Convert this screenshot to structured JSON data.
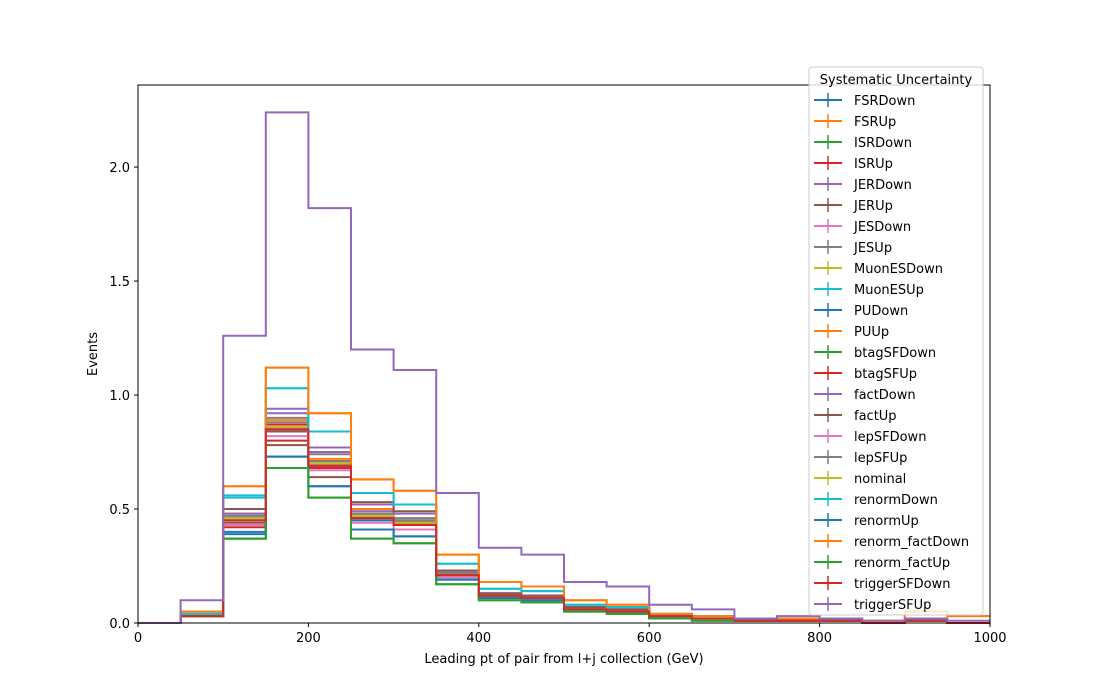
{
  "chart_data": {
    "type": "step",
    "xlabel": "Leading pt of pair from l+j collection (GeV)",
    "ylabel": "Events",
    "xlim": [
      0,
      1000
    ],
    "ylim": [
      0,
      2.36
    ],
    "x_ticks": [
      "0",
      "200",
      "400",
      "600",
      "800",
      "1000"
    ],
    "y_ticks": [
      "0.0",
      "0.5",
      "1.0",
      "1.5",
      "2.0"
    ],
    "legend_title": "Systematic Uncertainty",
    "legend_placement": "top-right",
    "bin_edges": [
      0,
      50,
      100,
      150,
      200,
      250,
      300,
      350,
      400,
      450,
      500,
      550,
      600,
      650,
      700,
      750,
      800,
      850,
      900,
      950,
      1000
    ],
    "series": [
      {
        "name": "FSRDown",
        "color": "#1f77b4",
        "values": [
          0,
          0.03,
          0.4,
          0.85,
          0.69,
          0.45,
          0.43,
          0.21,
          0.12,
          0.11,
          0.06,
          0.05,
          0.03,
          0.02,
          0.01,
          0.01,
          0.01,
          0.0,
          0.01,
          0.0
        ]
      },
      {
        "name": "FSRUp",
        "color": "#ff7f0e",
        "values": [
          0,
          0.04,
          0.48,
          0.89,
          0.72,
          0.5,
          0.45,
          0.22,
          0.13,
          0.12,
          0.07,
          0.06,
          0.03,
          0.02,
          0.01,
          0.01,
          0.01,
          0.0,
          0.01,
          0.0
        ]
      },
      {
        "name": "ISRDown",
        "color": "#2ca02c",
        "values": [
          0,
          0.03,
          0.45,
          0.86,
          0.7,
          0.46,
          0.44,
          0.21,
          0.12,
          0.11,
          0.06,
          0.05,
          0.03,
          0.02,
          0.01,
          0.01,
          0.01,
          0.0,
          0.01,
          0.0
        ]
      },
      {
        "name": "ISRUp",
        "color": "#d62728",
        "values": [
          0,
          0.03,
          0.46,
          0.87,
          0.71,
          0.47,
          0.44,
          0.21,
          0.12,
          0.11,
          0.06,
          0.05,
          0.03,
          0.02,
          0.01,
          0.01,
          0.01,
          0.0,
          0.01,
          0.0
        ]
      },
      {
        "name": "JERDown",
        "color": "#9467bd",
        "values": [
          0,
          0.03,
          0.47,
          0.92,
          0.75,
          0.49,
          0.45,
          0.22,
          0.13,
          0.12,
          0.07,
          0.06,
          0.03,
          0.02,
          0.01,
          0.01,
          0.01,
          0.0,
          0.01,
          0.0
        ]
      },
      {
        "name": "JERUp",
        "color": "#8c564b",
        "values": [
          0,
          0.03,
          0.44,
          0.84,
          0.69,
          0.46,
          0.43,
          0.21,
          0.12,
          0.11,
          0.06,
          0.05,
          0.03,
          0.02,
          0.01,
          0.01,
          0.01,
          0.0,
          0.01,
          0.0
        ]
      },
      {
        "name": "JESDown",
        "color": "#e377c2",
        "values": [
          0,
          0.03,
          0.43,
          0.82,
          0.67,
          0.44,
          0.41,
          0.2,
          0.11,
          0.1,
          0.06,
          0.05,
          0.03,
          0.02,
          0.01,
          0.01,
          0.01,
          0.0,
          0.01,
          0.0
        ]
      },
      {
        "name": "JESUp",
        "color": "#7f7f7f",
        "values": [
          0,
          0.03,
          0.47,
          0.9,
          0.74,
          0.48,
          0.46,
          0.22,
          0.13,
          0.12,
          0.07,
          0.06,
          0.03,
          0.02,
          0.01,
          0.01,
          0.01,
          0.0,
          0.01,
          0.0
        ]
      },
      {
        "name": "MuonESDown",
        "color": "#bcbd22",
        "values": [
          0,
          0.03,
          0.46,
          0.86,
          0.7,
          0.46,
          0.44,
          0.21,
          0.12,
          0.11,
          0.06,
          0.05,
          0.03,
          0.02,
          0.01,
          0.01,
          0.01,
          0.0,
          0.01,
          0.0
        ]
      },
      {
        "name": "MuonESUp",
        "color": "#17becf",
        "values": [
          0,
          0.04,
          0.56,
          1.03,
          0.84,
          0.57,
          0.52,
          0.26,
          0.15,
          0.14,
          0.08,
          0.07,
          0.04,
          0.03,
          0.01,
          0.01,
          0.01,
          0.0,
          0.01,
          0.0
        ]
      },
      {
        "name": "PUDown",
        "color": "#1f77b4",
        "values": [
          0,
          0.03,
          0.37,
          0.73,
          0.6,
          0.41,
          0.38,
          0.19,
          0.11,
          0.1,
          0.06,
          0.05,
          0.03,
          0.02,
          0.01,
          0.01,
          0.01,
          0.0,
          0.01,
          0.0
        ]
      },
      {
        "name": "PUUp",
        "color": "#ff7f0e",
        "values": [
          0,
          0.05,
          0.6,
          1.12,
          0.92,
          0.63,
          0.58,
          0.3,
          0.18,
          0.16,
          0.1,
          0.08,
          0.04,
          0.03,
          0.02,
          0.02,
          0.02,
          0.01,
          0.05,
          0.03
        ]
      },
      {
        "name": "btagSFDown",
        "color": "#2ca02c",
        "values": [
          0,
          0.03,
          0.37,
          0.68,
          0.55,
          0.37,
          0.35,
          0.17,
          0.1,
          0.09,
          0.05,
          0.04,
          0.02,
          0.01,
          0.01,
          0.01,
          0.01,
          0.0,
          0.01,
          0.0
        ]
      },
      {
        "name": "btagSFUp",
        "color": "#d62728",
        "values": [
          0,
          0.03,
          0.42,
          0.8,
          0.68,
          0.47,
          0.44,
          0.21,
          0.12,
          0.11,
          0.06,
          0.05,
          0.03,
          0.02,
          0.01,
          0.01,
          0.01,
          0.0,
          0.01,
          0.0
        ]
      },
      {
        "name": "factDown",
        "color": "#9467bd",
        "values": [
          0,
          0.03,
          0.48,
          0.94,
          0.77,
          0.52,
          0.48,
          0.23,
          0.13,
          0.12,
          0.07,
          0.06,
          0.03,
          0.02,
          0.01,
          0.01,
          0.01,
          0.0,
          0.01,
          0.0
        ]
      },
      {
        "name": "factUp",
        "color": "#8c564b",
        "values": [
          0,
          0.03,
          0.5,
          0.78,
          0.64,
          0.53,
          0.49,
          0.23,
          0.13,
          0.12,
          0.07,
          0.06,
          0.03,
          0.02,
          0.01,
          0.01,
          0.01,
          0.0,
          0.01,
          0.0
        ]
      },
      {
        "name": "lepSFDown",
        "color": "#e377c2",
        "values": [
          0,
          0.03,
          0.45,
          0.85,
          0.7,
          0.46,
          0.43,
          0.21,
          0.12,
          0.11,
          0.06,
          0.05,
          0.03,
          0.02,
          0.01,
          0.01,
          0.01,
          0.0,
          0.01,
          0.0
        ]
      },
      {
        "name": "lepSFUp",
        "color": "#7f7f7f",
        "values": [
          0,
          0.03,
          0.46,
          0.88,
          0.71,
          0.47,
          0.45,
          0.22,
          0.12,
          0.11,
          0.06,
          0.05,
          0.03,
          0.02,
          0.01,
          0.01,
          0.01,
          0.0,
          0.01,
          0.0
        ]
      },
      {
        "name": "nominal",
        "color": "#bcbd22",
        "values": [
          0,
          0.03,
          0.46,
          0.86,
          0.7,
          0.47,
          0.44,
          0.21,
          0.12,
          0.11,
          0.06,
          0.05,
          0.03,
          0.02,
          0.01,
          0.01,
          0.01,
          0.0,
          0.01,
          0.0
        ]
      },
      {
        "name": "renormDown",
        "color": "#17becf",
        "values": [
          0,
          0.04,
          0.55,
          1.03,
          0.84,
          0.57,
          0.52,
          0.26,
          0.15,
          0.14,
          0.08,
          0.07,
          0.04,
          0.03,
          0.01,
          0.01,
          0.01,
          0.0,
          0.01,
          0.0
        ]
      },
      {
        "name": "renormUp",
        "color": "#1f77b4",
        "values": [
          0,
          0.03,
          0.39,
          0.73,
          0.6,
          0.41,
          0.38,
          0.19,
          0.11,
          0.1,
          0.06,
          0.05,
          0.03,
          0.02,
          0.01,
          0.01,
          0.01,
          0.0,
          0.01,
          0.0
        ]
      },
      {
        "name": "renorm_factDown",
        "color": "#ff7f0e",
        "values": [
          0,
          0.05,
          0.6,
          1.12,
          0.92,
          0.63,
          0.58,
          0.3,
          0.18,
          0.16,
          0.1,
          0.08,
          0.04,
          0.03,
          0.02,
          0.02,
          0.02,
          0.01,
          0.05,
          0.03
        ]
      },
      {
        "name": "renorm_factUp",
        "color": "#2ca02c",
        "values": [
          0,
          0.03,
          0.37,
          0.68,
          0.55,
          0.37,
          0.35,
          0.17,
          0.1,
          0.09,
          0.05,
          0.04,
          0.02,
          0.01,
          0.01,
          0.01,
          0.01,
          0.0,
          0.01,
          0.0
        ]
      },
      {
        "name": "triggerSFDown",
        "color": "#d62728",
        "values": [
          0,
          0.03,
          0.45,
          0.85,
          0.69,
          0.46,
          0.43,
          0.21,
          0.12,
          0.11,
          0.06,
          0.05,
          0.03,
          0.02,
          0.01,
          0.01,
          0.01,
          0.0,
          0.01,
          0.0
        ]
      },
      {
        "name": "triggerSFUp",
        "color": "#9467bd",
        "values": [
          0,
          0.1,
          1.26,
          2.24,
          1.82,
          1.2,
          1.11,
          0.57,
          0.33,
          0.3,
          0.18,
          0.16,
          0.08,
          0.06,
          0.02,
          0.03,
          0.02,
          0.01,
          0.02,
          0.01
        ]
      }
    ]
  }
}
